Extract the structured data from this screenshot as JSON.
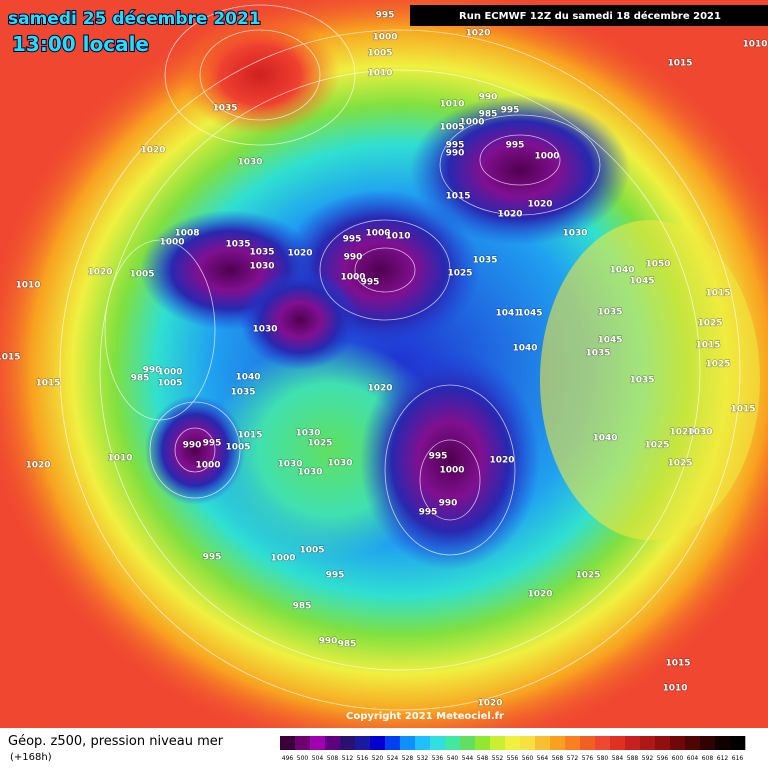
{
  "header": {
    "date": "samedi 25 décembre 2021",
    "time": "13:00 locale",
    "run": "Run ECMWF 12Z du samedi 18 décembre 2021"
  },
  "footer": {
    "field": "Géop. z500, pression niveau mer",
    "lead": "(+168h)",
    "copyright": "Copyright 2021 Meteociel.fr"
  },
  "legend": {
    "labels": [
      "496",
      "500",
      "504",
      "508",
      "512",
      "516",
      "520",
      "524",
      "528",
      "532",
      "536",
      "540",
      "544",
      "548",
      "552",
      "556",
      "560",
      "564",
      "568",
      "572",
      "576",
      "580",
      "584",
      "588",
      "592",
      "596",
      "600",
      "604",
      "608",
      "612",
      "616"
    ]
  },
  "isobar_labels": [
    "995",
    "1000",
    "1005",
    "1010",
    "1020",
    "1010",
    "1015",
    "1035",
    "1030",
    "1020",
    "1010",
    "990",
    "995",
    "985",
    "1000",
    "1005",
    "995",
    "990",
    "995",
    "1000",
    "1015",
    "1020",
    "1020",
    "1030",
    "1008",
    "1000",
    "1035",
    "1035",
    "1030",
    "1020",
    "995",
    "1000",
    "1010",
    "990",
    "1000",
    "995",
    "1025",
    "1035",
    "1040",
    "1050",
    "1045",
    "1010",
    "1020",
    "1005",
    "1030",
    "1041",
    "1045",
    "1035",
    "1015",
    "1025",
    "1040",
    "1045",
    "1035",
    "1015",
    "1015",
    "1025",
    "985",
    "990",
    "1000",
    "1005",
    "1040",
    "1035",
    "1020",
    "1035",
    "1015",
    "1015",
    "1030",
    "1025",
    "1015",
    "1005",
    "990",
    "995",
    "1000",
    "1010",
    "1030",
    "1030",
    "1030",
    "1040",
    "1025",
    "1020",
    "1030",
    "1025",
    "995",
    "1000",
    "1020",
    "990",
    "995",
    "1020",
    "995",
    "1000",
    "1005",
    "995",
    "1025",
    "1020",
    "985",
    "990",
    "985",
    "1015",
    "1010",
    "1020"
  ]
}
